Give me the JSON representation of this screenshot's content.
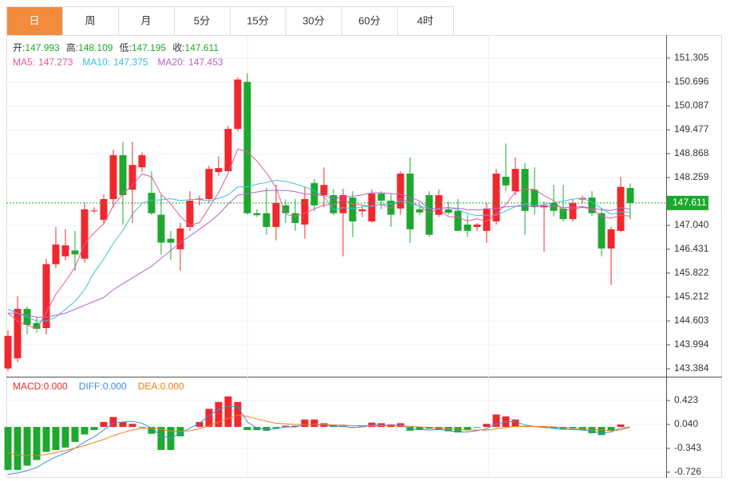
{
  "tabs": [
    "日",
    "周",
    "月",
    "5分",
    "15分",
    "30分",
    "60分",
    "4时"
  ],
  "active_tab": 0,
  "chart_data": [
    {
      "type": "candlestick",
      "up_color": "#f0282d",
      "down_color": "#1ea82e",
      "info_color": "#1ea82e",
      "info": [
        {
          "label": "开:",
          "value": 147.993
        },
        {
          "label": "高:",
          "value": 148.109
        },
        {
          "label": "低:",
          "value": 147.195
        },
        {
          "label": "收:",
          "value": 147.611
        }
      ],
      "last_price": 147.611,
      "ylim": [
        143.201,
        151.894
      ],
      "yticks": [
        151.305,
        150.696,
        150.087,
        149.477,
        148.868,
        148.259,
        {
          "value": 147.04,
          "label": "147.040"
        },
        146.431,
        145.822,
        145.212,
        144.603,
        143.994,
        143.384
      ],
      "open": [
        143.39,
        143.65,
        144.91,
        144.55,
        144.42,
        146.05,
        146.25,
        146.4,
        146.19,
        147.4,
        147.18,
        147.71,
        148.83,
        147.95,
        148.52,
        147.87,
        147.31,
        146.7,
        146.43,
        147.0,
        147.7,
        147.71,
        148.4,
        148.42,
        149.5,
        150.7,
        147.35,
        147.35,
        147.0,
        147.55,
        147.35,
        147.06,
        148.12,
        147.81,
        147.81,
        147.35,
        147.75,
        147.4,
        147.14,
        147.85,
        147.67,
        147.47,
        148.36,
        147.45,
        147.81,
        147.31,
        147.45,
        147.41,
        147.06,
        147.0,
        146.9,
        147.14,
        148.28,
        147.91,
        148.48,
        147.95,
        147.5,
        147.61,
        147.47,
        147.2,
        147.7,
        147.75,
        147.35,
        146.45,
        146.9,
        147.993
      ],
      "high": [
        144.36,
        145.23,
        144.97,
        144.7,
        146.19,
        147.0,
        146.94,
        146.9,
        147.61,
        147.5,
        147.83,
        148.97,
        149.17,
        149.17,
        148.9,
        148.42,
        147.81,
        146.9,
        147.1,
        147.91,
        147.8,
        148.56,
        148.8,
        149.58,
        150.82,
        150.92,
        147.45,
        148.0,
        148.07,
        147.7,
        147.71,
        148.02,
        148.22,
        148.52,
        147.97,
        147.97,
        147.91,
        147.55,
        147.95,
        147.91,
        147.85,
        148.42,
        148.77,
        147.6,
        147.91,
        147.95,
        147.65,
        147.71,
        147.3,
        147.1,
        147.61,
        148.48,
        149.13,
        148.77,
        148.63,
        148.52,
        147.65,
        148.07,
        148.07,
        147.71,
        147.8,
        147.91,
        147.47,
        147.0,
        148.28,
        148.109
      ],
      "low": [
        143.33,
        143.55,
        144.26,
        144.3,
        144.26,
        145.95,
        146.15,
        145.88,
        146.09,
        147.35,
        147.1,
        147.5,
        147.06,
        147.1,
        148.4,
        147.3,
        146.29,
        146.15,
        145.88,
        146.9,
        147.55,
        147.61,
        148.3,
        148.42,
        149.44,
        147.31,
        147.25,
        146.8,
        146.66,
        147.1,
        146.9,
        146.7,
        147.4,
        147.5,
        147.3,
        146.25,
        146.74,
        147.25,
        147.1,
        147.45,
        147.0,
        147.31,
        146.59,
        147.3,
        146.74,
        147.25,
        147.3,
        146.9,
        146.74,
        146.9,
        146.59,
        147.06,
        147.91,
        147.81,
        146.8,
        147.31,
        146.37,
        147.27,
        147.14,
        147.14,
        147.6,
        147.27,
        146.25,
        145.52,
        146.86,
        147.195
      ],
      "close": [
        144.22,
        144.91,
        144.5,
        144.4,
        146.05,
        146.55,
        146.53,
        146.3,
        147.45,
        147.42,
        147.71,
        148.83,
        147.81,
        148.58,
        148.83,
        147.35,
        146.6,
        146.6,
        146.96,
        147.67,
        147.72,
        148.48,
        148.5,
        149.5,
        150.76,
        147.35,
        147.3,
        147.0,
        147.61,
        147.35,
        147.1,
        147.71,
        147.55,
        148.07,
        147.35,
        147.81,
        147.14,
        147.45,
        147.85,
        147.67,
        147.31,
        148.36,
        146.94,
        147.37,
        146.8,
        147.81,
        147.36,
        146.9,
        146.9,
        147.06,
        147.47,
        148.36,
        148.06,
        148.48,
        147.41,
        147.51,
        147.55,
        147.41,
        147.2,
        147.61,
        147.74,
        147.35,
        146.45,
        146.94,
        148.02,
        147.611
      ],
      "series": [
        {
          "name": "MA5:",
          "color": "#e8579c",
          "current": 147.273,
          "values": [
            144.8,
            144.6,
            144.5,
            144.4,
            144.82,
            145.28,
            145.61,
            145.97,
            146.58,
            146.85,
            147.08,
            147.54,
            147.84,
            148.07,
            148.35,
            148.28,
            147.83,
            147.59,
            147.27,
            147.04,
            147.11,
            147.49,
            147.87,
            148.37,
            148.99,
            148.92,
            148.68,
            148.38,
            148.0,
            147.32,
            147.27,
            147.35,
            147.46,
            147.56,
            147.56,
            147.7,
            147.58,
            147.56,
            147.52,
            147.58,
            147.48,
            147.73,
            147.63,
            147.53,
            147.36,
            147.46,
            147.26,
            147.25,
            147.15,
            147.21,
            147.14,
            147.34,
            147.57,
            147.89,
            147.96,
            147.96,
            147.8,
            147.67,
            147.42,
            147.46,
            147.5,
            147.46,
            147.27,
            147.22,
            147.3,
            147.273
          ]
        },
        {
          "name": "MA10:",
          "color": "#3cc0d9",
          "current": 147.375,
          "values": [
            144.9,
            144.8,
            144.7,
            144.6,
            144.6,
            144.7,
            144.9,
            145.1,
            145.4,
            145.84,
            146.18,
            146.58,
            146.91,
            147.33,
            147.6,
            147.68,
            147.69,
            147.72,
            147.67,
            147.7,
            147.7,
            147.66,
            147.73,
            147.82,
            148.02,
            148.02,
            148.09,
            148.13,
            148.19,
            148.16,
            148.1,
            148.02,
            147.92,
            147.78,
            147.44,
            147.49,
            147.47,
            147.51,
            147.54,
            147.57,
            147.59,
            147.66,
            147.6,
            147.53,
            147.47,
            147.47,
            147.5,
            147.44,
            147.34,
            147.29,
            147.3,
            147.3,
            147.41,
            147.52,
            147.59,
            147.55,
            147.57,
            147.62,
            147.66,
            147.71,
            147.73,
            147.63,
            147.47,
            147.32,
            147.38,
            147.375
          ]
        },
        {
          "name": "MA20:",
          "color": "#b564c8",
          "current": 147.453,
          "values": [
            144.8,
            144.8,
            144.75,
            144.7,
            144.7,
            144.75,
            144.8,
            144.9,
            145.0,
            145.1,
            145.2,
            145.4,
            145.55,
            145.7,
            145.85,
            146.0,
            146.2,
            146.4,
            146.6,
            146.77,
            146.94,
            147.12,
            147.32,
            147.58,
            147.81,
            147.85,
            147.89,
            147.93,
            147.93,
            147.93,
            147.9,
            147.84,
            147.83,
            147.8,
            147.73,
            147.76,
            147.78,
            147.82,
            147.87,
            147.87,
            147.85,
            147.84,
            147.76,
            147.66,
            147.46,
            147.48,
            147.49,
            147.48,
            147.44,
            147.43,
            147.45,
            147.48,
            147.51,
            147.53,
            147.53,
            147.51,
            147.54,
            147.53,
            147.5,
            147.5,
            147.52,
            147.47,
            147.44,
            147.42,
            147.49,
            147.453
          ]
        }
      ]
    },
    {
      "type": "macd",
      "up_color": "#f0282d",
      "down_color": "#1ea82e",
      "ylim": [
        -0.816,
        0.781
      ],
      "yticks": [
        0.423,
        {
          "value": 0.04,
          "label": "0.040"
        },
        -0.343,
        -0.726
      ],
      "series": [
        {
          "name": "MACD:",
          "kind": "histogram",
          "color": "#f0282d",
          "current": 0,
          "current_label": "0.000",
          "values": [
            -0.69,
            -0.69,
            -0.62,
            -0.53,
            -0.4,
            -0.37,
            -0.33,
            -0.24,
            -0.12,
            -0.05,
            0.08,
            0.16,
            0.08,
            0.05,
            -0.01,
            -0.11,
            -0.37,
            -0.37,
            -0.15,
            0.0,
            0.08,
            0.29,
            0.4,
            0.49,
            0.4,
            -0.05,
            -0.05,
            -0.06,
            -0.02,
            0.02,
            0.02,
            0.12,
            0.12,
            0.06,
            0.03,
            0.02,
            -0.01,
            0.01,
            0.07,
            0.06,
            0.04,
            0.06,
            -0.06,
            -0.05,
            -0.03,
            -0.05,
            -0.07,
            -0.09,
            -0.05,
            -0.01,
            0.05,
            0.2,
            0.17,
            0.12,
            0.01,
            0.0,
            -0.01,
            -0.02,
            -0.03,
            -0.03,
            -0.05,
            -0.1,
            -0.13,
            -0.06,
            0.04,
            0.0
          ]
        },
        {
          "name": "DIFF:",
          "kind": "line",
          "color": "#3a8ee6",
          "current": 0,
          "current_label": "0.000",
          "values": [
            -0.76,
            -0.74,
            -0.7,
            -0.65,
            -0.56,
            -0.48,
            -0.42,
            -0.34,
            -0.24,
            -0.16,
            -0.05,
            0.06,
            0.08,
            0.09,
            0.06,
            -0.02,
            -0.14,
            -0.18,
            -0.1,
            -0.02,
            0.06,
            0.18,
            0.28,
            0.33,
            0.33,
            0.08,
            -0.02,
            -0.04,
            -0.03,
            0.0,
            0.0,
            0.04,
            0.04,
            0.03,
            0.01,
            0.01,
            -0.01,
            0.0,
            0.03,
            0.03,
            0.02,
            0.03,
            -0.03,
            -0.04,
            -0.05,
            -0.04,
            -0.06,
            -0.08,
            -0.08,
            -0.06,
            -0.03,
            0.05,
            0.08,
            0.09,
            0.03,
            0.01,
            -0.01,
            -0.02,
            -0.04,
            -0.04,
            -0.05,
            -0.07,
            -0.1,
            -0.08,
            -0.02,
            0.0
          ]
        },
        {
          "name": "DEA:",
          "kind": "line",
          "color": "#f07c1a",
          "current": 0,
          "current_label": "0.000",
          "values": [
            -0.42,
            -0.45,
            -0.46,
            -0.46,
            -0.44,
            -0.41,
            -0.38,
            -0.34,
            -0.3,
            -0.25,
            -0.2,
            -0.14,
            -0.09,
            -0.05,
            -0.02,
            -0.02,
            -0.04,
            -0.07,
            -0.07,
            -0.06,
            -0.03,
            0.02,
            0.08,
            0.14,
            0.19,
            0.17,
            0.13,
            0.09,
            0.06,
            0.05,
            0.04,
            0.04,
            0.04,
            0.04,
            0.03,
            0.03,
            0.02,
            0.02,
            0.02,
            0.02,
            0.02,
            0.02,
            0.01,
            0.0,
            -0.01,
            -0.02,
            -0.03,
            -0.04,
            -0.05,
            -0.05,
            -0.05,
            -0.03,
            -0.01,
            0.01,
            0.01,
            0.01,
            0.01,
            0.0,
            -0.01,
            -0.02,
            -0.03,
            -0.04,
            -0.05,
            -0.06,
            -0.05,
            0.0
          ]
        }
      ]
    }
  ]
}
